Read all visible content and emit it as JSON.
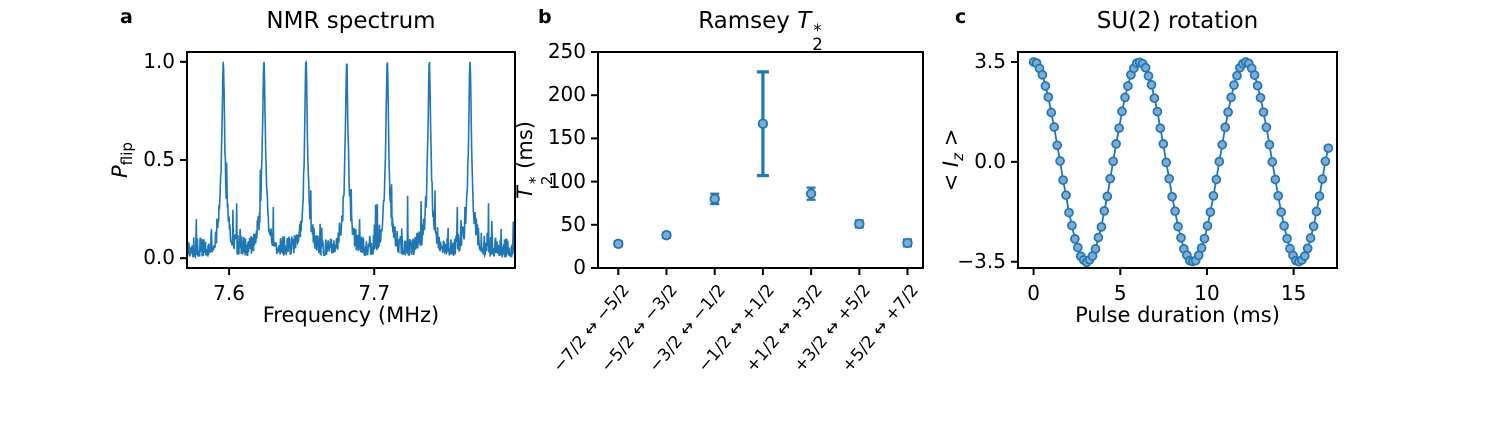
{
  "panel_letters": [
    "a",
    "b",
    "c"
  ],
  "colors": {
    "series_blue": "#1f77b4",
    "marker_fill": "#7dabd4",
    "axis_black": "#000000",
    "background": "#ffffff"
  },
  "chart_data": [
    {
      "type": "line",
      "panel": "a",
      "title": "NMR spectrum",
      "title_rich": [
        {
          "t": "NMR spectrum"
        }
      ],
      "xlabel": "Frequency (MHz)",
      "ylabel": "P_flip",
      "ylabel_rich": [
        {
          "t": "P",
          "s": "i"
        },
        {
          "t": "flip",
          "s": "sub"
        }
      ],
      "xlim": [
        7.571,
        7.797
      ],
      "ylim": [
        -0.05,
        1.05
      ],
      "xticks": {
        "values": [
          7.6,
          7.7
        ],
        "labels": [
          "7.6",
          "7.7"
        ]
      },
      "yticks": {
        "values": [
          0.0,
          0.5,
          1.0
        ],
        "labels": [
          "0.0",
          "0.5",
          "1.0"
        ]
      },
      "grid": false,
      "peaks": {
        "centers": [
          7.596,
          7.624,
          7.653,
          7.681,
          7.709,
          7.738,
          7.766
        ],
        "heights": [
          1.0,
          1.0,
          1.0,
          0.97,
          1.0,
          1.0,
          1.0
        ],
        "lorentz_gamma": 0.0011
      },
      "noise": {
        "floor_max": 0.105,
        "spike_prob": 0.045,
        "spike_max": 0.17,
        "base_bump_height": 0.17,
        "base_bump_sigma": 0.0045,
        "seed": 11,
        "n_points": 780
      }
    },
    {
      "type": "scatter",
      "panel": "b",
      "title": "Ramsey T2*",
      "title_rich": [
        {
          "t": "Ramsey "
        },
        {
          "t": "T",
          "s": "i"
        },
        {
          "stack": {
            "sup": "*",
            "sub": "2"
          }
        }
      ],
      "xlabel": "",
      "ylabel": "T2* (ms)",
      "ylabel_rich": [
        {
          "t": "T",
          "s": "i"
        },
        {
          "stack": {
            "sup": "*",
            "sub": "2"
          }
        },
        {
          "t": " (ms)"
        }
      ],
      "categories": [
        "−7/2 ↔ −5/2",
        "−5/2 ↔ −3/2",
        "−3/2 ↔ −1/2",
        "−1/2 ↔ +1/2",
        "+1/2 ↔ +3/2",
        "+3/2 ↔ +5/2",
        "+5/2 ↔ +7/2"
      ],
      "values": [
        28,
        38,
        80,
        167,
        86,
        51,
        29
      ],
      "errors": [
        3,
        3,
        6,
        60,
        7,
        4,
        4
      ],
      "ylim": [
        0,
        250
      ],
      "yticks": {
        "values": [
          0,
          50,
          100,
          150,
          200,
          250
        ],
        "labels": [
          "0",
          "50",
          "100",
          "150",
          "200",
          "250"
        ]
      },
      "grid": false
    },
    {
      "type": "scatter-line",
      "panel": "c",
      "title": "SU(2) rotation",
      "title_rich": [
        {
          "t": "SU(2) rotation"
        }
      ],
      "xlabel": "Pulse duration (ms)",
      "ylabel": "<Iz>",
      "ylabel_rich": [
        {
          "t": "< "
        },
        {
          "t": "I",
          "s": "i"
        },
        {
          "t": "z",
          "s": "isub"
        },
        {
          "t": " >"
        }
      ],
      "xlim": [
        -0.9,
        17.5
      ],
      "ylim": [
        -3.72,
        3.85
      ],
      "xticks": {
        "values": [
          0,
          5,
          10,
          15
        ],
        "labels": [
          "0",
          "5",
          "10",
          "15"
        ]
      },
      "yticks": {
        "values": [
          -3.5,
          0.0,
          3.5
        ],
        "labels": [
          "−3.5",
          "0.0",
          "3.5"
        ]
      },
      "grid": false,
      "x": [
        0,
        0.17,
        0.34,
        0.51,
        0.68,
        0.85,
        1.02,
        1.19,
        1.36,
        1.53,
        1.7,
        1.87,
        2.04,
        2.21,
        2.38,
        2.55,
        2.72,
        2.89,
        3.06,
        3.23,
        3.4,
        3.57,
        3.74,
        3.91,
        4.08,
        4.25,
        4.42,
        4.59,
        4.76,
        4.93,
        5.1,
        5.27,
        5.44,
        5.61,
        5.78,
        5.95,
        6.12,
        6.29,
        6.46,
        6.63,
        6.8,
        6.97,
        7.14,
        7.31,
        7.48,
        7.65,
        7.82,
        7.99,
        8.16,
        8.33,
        8.5,
        8.67,
        8.84,
        9.01,
        9.18,
        9.35,
        9.52,
        9.69,
        9.86,
        10.03,
        10.2,
        10.37,
        10.54,
        10.71,
        10.88,
        11.05,
        11.22,
        11.39,
        11.56,
        11.73,
        11.9,
        12.07,
        12.24,
        12.41,
        12.58,
        12.75,
        12.92,
        13.09,
        13.26,
        13.43,
        13.6,
        13.77,
        13.94,
        14.11,
        14.28,
        14.45,
        14.62,
        14.79,
        14.96,
        15.13,
        15.3,
        15.47,
        15.64,
        15.81,
        15.98,
        16.15,
        16.32,
        16.49,
        16.66,
        16.83,
        17.0
      ],
      "y": [
        3.5,
        3.46,
        3.27,
        3.05,
        2.66,
        2.27,
        1.73,
        1.22,
        0.58,
        0.03,
        -0.64,
        -1.17,
        -1.78,
        -2.23,
        -2.7,
        -3.0,
        -3.31,
        -3.44,
        -3.52,
        -3.43,
        -3.3,
        -3.05,
        -2.65,
        -2.28,
        -1.72,
        -1.21,
        -0.59,
        0.02,
        0.63,
        1.18,
        1.77,
        2.26,
        2.66,
        3.05,
        3.28,
        3.46,
        3.49,
        3.44,
        3.3,
        3.01,
        2.7,
        2.23,
        1.76,
        1.18,
        0.63,
        -0.02,
        -0.59,
        -1.22,
        -1.73,
        -2.27,
        -2.66,
        -3.05,
        -3.27,
        -3.46,
        -3.49,
        -3.46,
        -3.28,
        -3.02,
        -2.69,
        -2.24,
        -1.76,
        -1.19,
        -0.62,
        0.01,
        0.6,
        1.21,
        1.74,
        2.26,
        2.69,
        3.02,
        3.3,
        3.44,
        3.5,
        3.45,
        3.28,
        3.04,
        2.67,
        2.25,
        1.74,
        1.21,
        0.6,
        0.0,
        -0.62,
        -1.19,
        -1.76,
        -2.24,
        -2.69,
        -3.04,
        -3.28,
        -3.46,
        -3.5,
        -3.44,
        -3.3,
        -3.03,
        -2.67,
        -2.26,
        -1.74,
        -1.2,
        -0.6,
        0.02,
        0.48
      ]
    }
  ]
}
